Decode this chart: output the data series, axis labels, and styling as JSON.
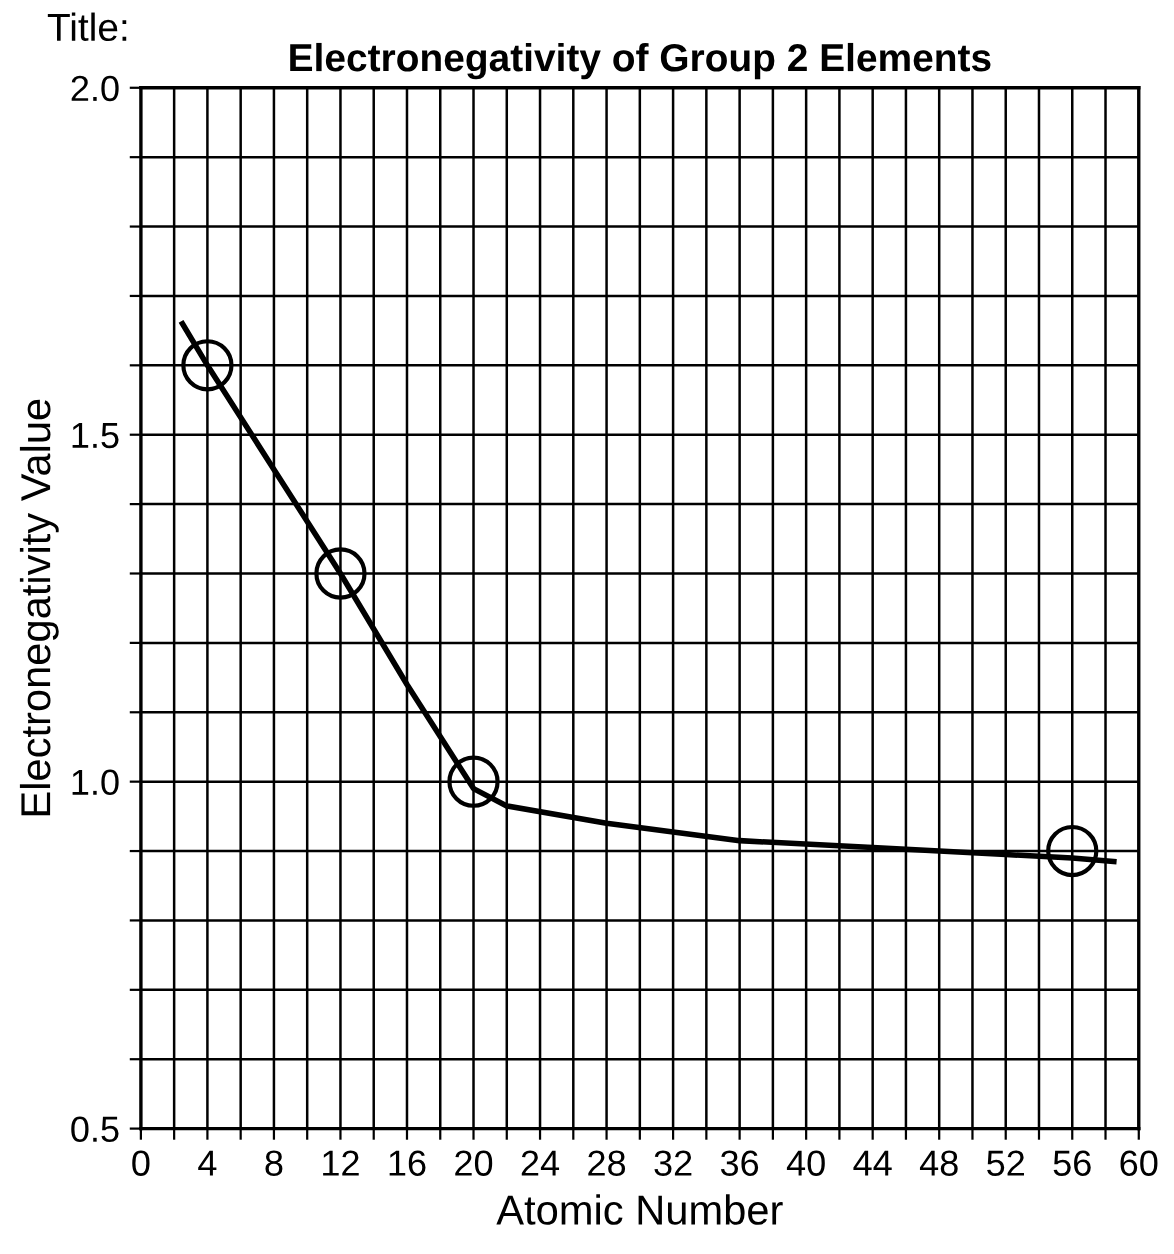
{
  "chart_data": {
    "type": "scatter",
    "title": "Electronegativity of Group 2 Elements",
    "xlabel": "Atomic Number",
    "ylabel": "Electronegativity Value",
    "annotations": [
      "Title:"
    ],
    "xlim": [
      0,
      60
    ],
    "ylim": [
      0.5,
      2.0
    ],
    "xticks": [
      0,
      {
        "value": 2,
        "label": null
      },
      4,
      {
        "value": 6,
        "label": null
      },
      8,
      {
        "value": 10,
        "label": null
      },
      12,
      {
        "value": 14,
        "label": null
      },
      16,
      {
        "value": 18,
        "label": null
      },
      20,
      {
        "value": 22,
        "label": null
      },
      24,
      {
        "value": 26,
        "label": null
      },
      28,
      {
        "value": 30,
        "label": null
      },
      32,
      {
        "value": 34,
        "label": null
      },
      36,
      {
        "value": 38,
        "label": null
      },
      40,
      {
        "value": 42,
        "label": null
      },
      44,
      {
        "value": 46,
        "label": null
      },
      48,
      {
        "value": 50,
        "label": null
      },
      52,
      {
        "value": 54,
        "label": null
      },
      56,
      {
        "value": 58,
        "label": null
      },
      60
    ],
    "yticks": [
      {
        "value": 0.5,
        "label": "0.5"
      },
      {
        "value": 0.6,
        "label": null
      },
      {
        "value": 0.7,
        "label": null
      },
      {
        "value": 0.8,
        "label": null
      },
      {
        "value": 0.9,
        "label": null
      },
      {
        "value": 1.0,
        "label": "1.0"
      },
      {
        "value": 1.1,
        "label": null
      },
      {
        "value": 1.2,
        "label": null
      },
      {
        "value": 1.3,
        "label": null
      },
      {
        "value": 1.4,
        "label": null
      },
      {
        "value": 1.5,
        "label": "1.5"
      },
      {
        "value": 1.6,
        "label": null
      },
      {
        "value": 1.7,
        "label": null
      },
      {
        "value": 1.8,
        "label": null
      },
      {
        "value": 1.9,
        "label": null
      },
      {
        "value": 2.0,
        "label": "2.0"
      }
    ],
    "grid": true,
    "marker": "circle",
    "series": [
      {
        "type": "line",
        "color": "#000000",
        "marker": "none",
        "x": [
          2.5,
          4,
          8,
          12,
          16,
          20,
          22,
          28,
          36,
          44,
          52,
          56,
          58.5
        ],
        "values": [
          1.66,
          1.6,
          1.45,
          1.3,
          1.14,
          0.99,
          0.965,
          0.94,
          0.915,
          0.905,
          0.895,
          0.89,
          0.885
        ]
      },
      {
        "color": "#000000",
        "x": [
          4,
          12,
          20,
          56
        ],
        "values": [
          1.6,
          1.3,
          1.0,
          0.9
        ]
      }
    ]
  }
}
